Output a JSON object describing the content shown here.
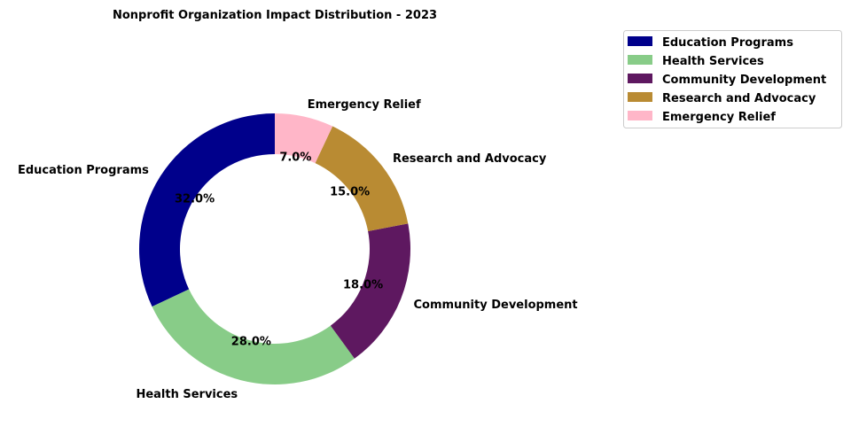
{
  "chart_data": {
    "type": "pie",
    "donut": true,
    "title": "Nonprofit Organization Impact Distribution - 2023",
    "categories": [
      "Education Programs",
      "Health Services",
      "Community Development",
      "Research and Advocacy",
      "Emergency Relief"
    ],
    "values": [
      32.0,
      28.0,
      18.0,
      15.0,
      7.0
    ],
    "value_labels": [
      "32.0%",
      "28.0%",
      "18.0%",
      "15.0%",
      "7.0%"
    ],
    "colors": [
      "#00008B",
      "#88CC88",
      "#5E1860",
      "#B98B33",
      "#FFB6C8"
    ],
    "start_angle_deg": 90,
    "direction": "counterclockwise",
    "legend_position": "top-right"
  }
}
